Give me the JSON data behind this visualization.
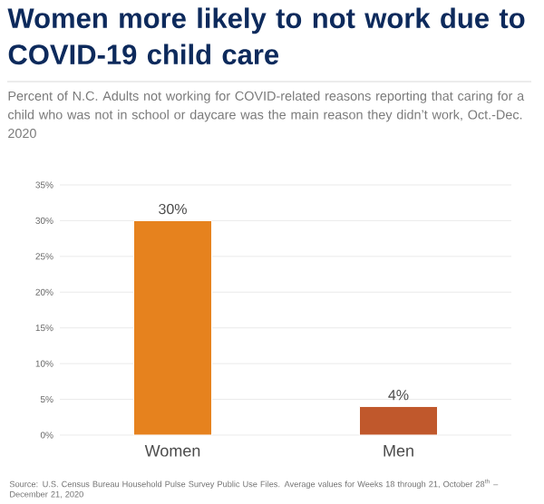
{
  "chart_data": {
    "type": "bar",
    "title": "Women more likely to not work due to COVID-19 child care",
    "subtitle": "Percent of N.C. Adults not working for COVID-related reasons reporting that caring for a child who was not in school or daycare was the main reason they didn’t work, Oct.-Dec. 2020",
    "categories": [
      "Women",
      "Men"
    ],
    "values": [
      30,
      4
    ],
    "value_labels": [
      "30%",
      "4%"
    ],
    "colors": [
      "#e6821e",
      "#c0582c"
    ],
    "ylim": [
      0,
      35
    ],
    "yticks": [
      {
        "value": 0,
        "label": "0%"
      },
      {
        "value": 5,
        "label": "5%"
      },
      {
        "value": 10,
        "label": "10%"
      },
      {
        "value": 15,
        "label": "15%"
      },
      {
        "value": 20,
        "label": "20%"
      },
      {
        "value": 25,
        "label": "25%"
      },
      {
        "value": 30,
        "label": "30%"
      },
      {
        "value": 35,
        "label": "35%"
      }
    ],
    "grid": "y",
    "annotations": [
      "Source: U.S. Census Bureau Household Pulse Survey Public Use Files. Average values for Weeks 18 through 21, October 28$^{th}$ – December 21, 2020"
    ]
  }
}
